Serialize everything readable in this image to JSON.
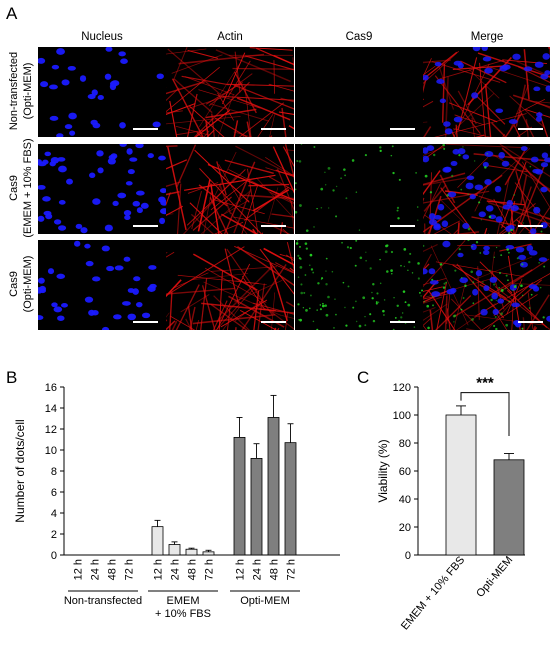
{
  "panel_labels": {
    "a": "A",
    "b": "B",
    "c": "C"
  },
  "micrograph": {
    "columns": [
      "Nucleus",
      "Actin",
      "Cas9",
      "Merge"
    ],
    "rows": [
      {
        "label_line1": "Non-transfected",
        "label_line2": "(Opti-MEM)"
      },
      {
        "label_line1": "Cas9",
        "label_line2": "(EMEM + 10% FBS)"
      },
      {
        "label_line1": "Cas9",
        "label_line2": "(Opti-MEM)"
      }
    ],
    "channel_colors": {
      "nucleus": "#1a1aff",
      "actin": "#e01010",
      "cas9": "#22cc22",
      "background": "#000000"
    },
    "scale_bar_color": "#ffffff"
  },
  "chart_data": [
    {
      "type": "bar",
      "ylabel": "Number of dots/cell",
      "ylim": [
        0,
        16
      ],
      "yticks": [
        0,
        2,
        4,
        6,
        8,
        10,
        12,
        14,
        16
      ],
      "groups": [
        {
          "name": "Non-transfected",
          "categories": [
            "12 h",
            "24 h",
            "48 h",
            "72 h"
          ],
          "values": [
            0,
            0,
            0,
            0
          ],
          "errors": [
            0,
            0,
            0,
            0
          ],
          "color": "#ffffff"
        },
        {
          "name": "EMEM\n+ 10% FBS",
          "categories": [
            "12 h",
            "24 h",
            "48 h",
            "72 h"
          ],
          "values": [
            2.7,
            1.0,
            0.55,
            0.3
          ],
          "errors": [
            0.6,
            0.25,
            0.1,
            0.15
          ],
          "color": "#e8e8e8"
        },
        {
          "name": "Opti-MEM",
          "categories": [
            "12 h",
            "24 h",
            "48 h",
            "72 h"
          ],
          "values": [
            11.2,
            9.2,
            13.1,
            10.7
          ],
          "errors": [
            1.9,
            1.4,
            2.1,
            1.8
          ],
          "color": "#7f7f7f"
        }
      ],
      "grid": false
    },
    {
      "type": "bar",
      "ylabel": "Viability (%)",
      "ylim": [
        0,
        120
      ],
      "yticks": [
        0,
        20,
        40,
        60,
        80,
        100,
        120
      ],
      "categories": [
        "EMEM + 10% FBS",
        "Opti-MEM"
      ],
      "values": [
        100,
        68
      ],
      "errors": [
        6.5,
        4.5
      ],
      "colors": [
        "#e8e8e8",
        "#7f7f7f"
      ],
      "significance": "***",
      "grid": false
    }
  ]
}
